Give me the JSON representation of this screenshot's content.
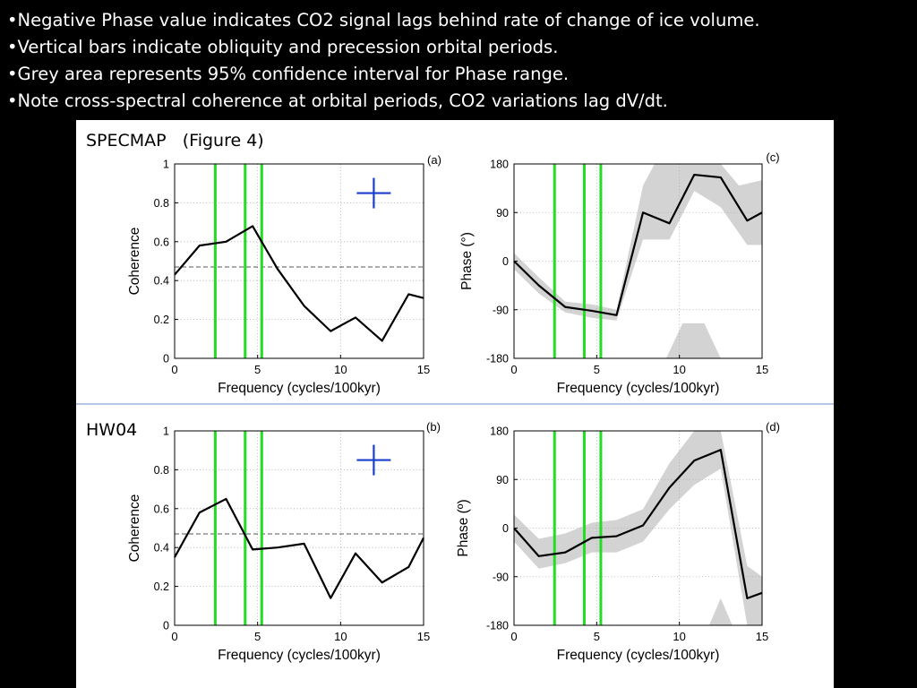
{
  "bullets": [
    "Negative Phase value indicates CO2 signal lags behind rate of change of ice volume.",
    "Vertical bars indicate obliquity and precession orbital periods.",
    "Grey area represents 95% confidence interval for Phase range.",
    "Note cross-spectral coherence at orbital periods, CO2 variations lag dV/dt."
  ],
  "figure": {
    "row_titles": [
      "SPECMAP   (Figure 4)",
      "HW04"
    ],
    "colors": {
      "signal_line": "#000000",
      "orbital_bar": "#22dd22",
      "confidence_band": "#d3d3d3",
      "threshold": "#555555",
      "marker": "#1a3fcc",
      "divider": "#6b8fc8"
    }
  },
  "chart_data": [
    {
      "type": "line",
      "label": "(a)",
      "xlabel": "Frequency (cycles/100kyr)",
      "ylabel": "Coherence",
      "xlim": [
        0,
        15
      ],
      "ylim": [
        0,
        1
      ],
      "xticks": [
        "0",
        "5",
        "10",
        "15"
      ],
      "yticks": [
        "0",
        "0.2",
        "0.4",
        "0.6",
        "0.8",
        "1"
      ],
      "grid": true,
      "x": [
        0,
        1.5,
        3.1,
        4.7,
        6.2,
        7.8,
        9.4,
        10.9,
        12.5,
        14.1,
        15
      ],
      "values": [
        0.43,
        0.58,
        0.6,
        0.68,
        0.46,
        0.27,
        0.14,
        0.21,
        0.09,
        0.33,
        0.31
      ],
      "threshold": 0.47,
      "orbital_bars": [
        2.45,
        4.25,
        5.25
      ],
      "marker": {
        "x": 12.0,
        "y": 0.85
      }
    },
    {
      "type": "line",
      "label": "(c)",
      "xlabel": "Frequency (cycles/100kyr)",
      "ylabel": "Phase (°)",
      "xlim": [
        0,
        15
      ],
      "ylim": [
        -180,
        180
      ],
      "xticks": [
        "0",
        "5",
        "10",
        "15"
      ],
      "yticks": [
        "-180",
        "-90",
        "0",
        "90",
        "180"
      ],
      "grid": true,
      "x": [
        0,
        1.5,
        3.1,
        4.7,
        6.2,
        7.8,
        9.4,
        10.9,
        12.5,
        14.1,
        15
      ],
      "values": [
        0,
        -45,
        -85,
        -92,
        -100,
        90,
        70,
        160,
        155,
        75,
        90
      ],
      "band": {
        "polygons": [
          {
            "upper": [
              [
                0,
                15
              ],
              [
                1.5,
                -30
              ],
              [
                3.1,
                -75
              ],
              [
                4.7,
                -80
              ],
              [
                6.2,
                -90
              ],
              [
                7.8,
                140
              ],
              [
                8.5,
                180
              ],
              [
                11.6,
                180
              ],
              [
                12.5,
                180
              ],
              [
                13.6,
                140
              ],
              [
                15,
                150
              ]
            ],
            "lower": [
              [
                0,
                -15
              ],
              [
                1.5,
                -60
              ],
              [
                3.1,
                -95
              ],
              [
                4.7,
                -105
              ],
              [
                6.2,
                -110
              ],
              [
                7.8,
                40
              ],
              [
                9.4,
                40
              ],
              [
                10.9,
                130
              ],
              [
                12.5,
                100
              ],
              [
                14.1,
                30
              ],
              [
                15,
                30
              ]
            ]
          },
          {
            "upper": [
              [
                9.2,
                -180
              ],
              [
                10.2,
                -115
              ],
              [
                11.5,
                -115
              ],
              [
                12.5,
                -180
              ]
            ],
            "lower": [
              [
                9.2,
                -180
              ],
              [
                12.5,
                -180
              ]
            ]
          }
        ]
      },
      "orbital_bars": [
        2.45,
        4.25,
        5.25
      ]
    },
    {
      "type": "line",
      "label": "(b)",
      "xlabel": "Frequency (cycles/100kyr)",
      "ylabel": "Coherence",
      "xlim": [
        0,
        15
      ],
      "ylim": [
        0,
        1
      ],
      "xticks": [
        "0",
        "5",
        "10",
        "15"
      ],
      "yticks": [
        "0",
        "0.2",
        "0.4",
        "0.6",
        "0.8",
        "1"
      ],
      "grid": true,
      "x": [
        0,
        1.5,
        3.1,
        4.7,
        6.2,
        7.8,
        9.4,
        10.9,
        12.5,
        14.1,
        15
      ],
      "values": [
        0.35,
        0.58,
        0.65,
        0.39,
        0.4,
        0.42,
        0.14,
        0.37,
        0.22,
        0.3,
        0.45
      ],
      "threshold": 0.47,
      "orbital_bars": [
        2.45,
        4.25,
        5.25
      ],
      "marker": {
        "x": 12.0,
        "y": 0.85
      }
    },
    {
      "type": "line",
      "label": "(d)",
      "xlabel": "Frequency (cycles/100kyr)",
      "ylabel": "Phase (º)",
      "xlim": [
        0,
        15
      ],
      "ylim": [
        -180,
        180
      ],
      "xticks": [
        "0",
        "5",
        "10",
        "15"
      ],
      "yticks": [
        "-180",
        "-90",
        "0",
        "90",
        "180"
      ],
      "grid": true,
      "x": [
        0,
        1.5,
        3.1,
        4.7,
        6.2,
        7.8,
        9.4,
        10.9,
        12.5,
        14.1,
        15
      ],
      "values": [
        0,
        -52,
        -45,
        -18,
        -15,
        5,
        75,
        125,
        145,
        -130,
        -120
      ],
      "band": {
        "polygons": [
          {
            "upper": [
              [
                0,
                25
              ],
              [
                1.5,
                -20
              ],
              [
                3.1,
                -10
              ],
              [
                4.7,
                10
              ],
              [
                6.2,
                15
              ],
              [
                7.8,
                35
              ],
              [
                9.4,
                120
              ],
              [
                10.9,
                180
              ],
              [
                12.5,
                180
              ],
              [
                14.1,
                -70
              ],
              [
                15,
                -90
              ]
            ],
            "lower": [
              [
                0,
                -25
              ],
              [
                1.5,
                -75
              ],
              [
                3.1,
                -65
              ],
              [
                4.7,
                -45
              ],
              [
                6.2,
                -45
              ],
              [
                7.8,
                -25
              ],
              [
                9.4,
                35
              ],
              [
                10.9,
                80
              ],
              [
                12.5,
                110
              ],
              [
                14.1,
                -180
              ],
              [
                15,
                -180
              ]
            ]
          },
          {
            "upper": [
              [
                11.8,
                -180
              ],
              [
                12.5,
                -130
              ],
              [
                13.2,
                -180
              ]
            ],
            "lower": [
              [
                11.8,
                -180
              ],
              [
                13.2,
                -180
              ]
            ]
          }
        ]
      },
      "orbital_bars": [
        2.45,
        4.25,
        5.25
      ]
    }
  ]
}
